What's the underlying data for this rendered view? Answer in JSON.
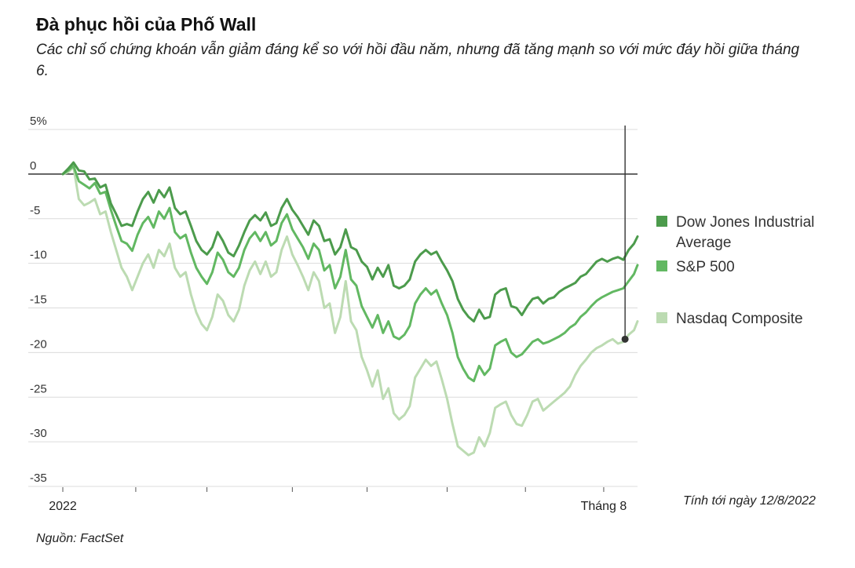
{
  "title": "Đà phục hồi của Phố Wall",
  "subtitle": "Các chỉ số chứng khoán vẫn giảm đáng kể so với hồi đầu năm, nhưng đã tăng mạnh so với mức đáy hồi giữa tháng 6.",
  "note": "Tính tới ngày 12/8/2022",
  "source": "Nguồn: FactSet",
  "chart_data": {
    "type": "line",
    "ylabel": "%",
    "ylim": [
      -35,
      5
    ],
    "yticks": [
      5,
      0,
      -5,
      -10,
      -15,
      -20,
      -25,
      -30,
      -35
    ],
    "ytick_labels": [
      "5%",
      "0",
      "-5",
      "-10",
      "-15",
      "-20",
      "-25",
      "-30",
      "-35"
    ],
    "xlim": [
      0,
      32.3
    ],
    "x_unit": "weeks since 2022-01-01",
    "xticks": [
      0,
      4.1,
      8.1,
      12.9,
      17.1,
      21.6,
      26.0,
      30.4
    ],
    "xtick_labels": [
      "2022",
      "",
      "",
      "",
      "",
      "",
      "",
      "Tháng 8"
    ],
    "annotation_x": 31.6,
    "legend_position": "right",
    "series": [
      {
        "name": "Dow Jones Industrial Average",
        "legend_lines": [
          "Dow Jones Industrial",
          "Average"
        ],
        "color": "#4c9b4c",
        "x": [
          0,
          0.3,
          0.6,
          0.9,
          1.2,
          1.5,
          1.8,
          2.1,
          2.4,
          2.7,
          3.0,
          3.3,
          3.6,
          3.9,
          4.2,
          4.5,
          4.8,
          5.1,
          5.4,
          5.7,
          6.0,
          6.3,
          6.6,
          6.9,
          7.2,
          7.5,
          7.8,
          8.1,
          8.4,
          8.7,
          9.0,
          9.3,
          9.6,
          9.9,
          10.2,
          10.5,
          10.8,
          11.1,
          11.4,
          11.7,
          12.0,
          12.3,
          12.6,
          12.9,
          13.2,
          13.5,
          13.8,
          14.1,
          14.4,
          14.7,
          15.0,
          15.3,
          15.6,
          15.9,
          16.2,
          16.5,
          16.8,
          17.1,
          17.4,
          17.7,
          18.0,
          18.3,
          18.6,
          18.9,
          19.2,
          19.5,
          19.8,
          20.1,
          20.4,
          20.7,
          21.0,
          21.3,
          21.6,
          21.9,
          22.2,
          22.5,
          22.8,
          23.1,
          23.4,
          23.7,
          24.0,
          24.3,
          24.6,
          24.9,
          25.2,
          25.5,
          25.8,
          26.1,
          26.4,
          26.7,
          27.0,
          27.3,
          27.6,
          27.9,
          28.2,
          28.5,
          28.8,
          29.1,
          29.4,
          29.7,
          30.0,
          30.3,
          30.6,
          30.9,
          31.2,
          31.5,
          31.8,
          32.1,
          32.3
        ],
        "values": [
          0,
          0.6,
          1.3,
          0.4,
          0.3,
          -0.6,
          -0.5,
          -1.5,
          -1.2,
          -3.3,
          -4.5,
          -5.8,
          -5.6,
          -5.8,
          -4.2,
          -2.8,
          -2.0,
          -3.2,
          -1.8,
          -2.6,
          -1.5,
          -3.8,
          -4.5,
          -4.2,
          -5.8,
          -7.5,
          -8.5,
          -9.0,
          -8.2,
          -6.5,
          -7.5,
          -8.8,
          -9.2,
          -8.0,
          -6.5,
          -5.2,
          -4.6,
          -5.2,
          -4.3,
          -5.8,
          -5.5,
          -3.8,
          -2.8,
          -4.0,
          -4.8,
          -5.8,
          -6.8,
          -5.2,
          -5.8,
          -7.5,
          -7.3,
          -9.0,
          -8.2,
          -6.2,
          -8.2,
          -8.5,
          -9.8,
          -10.4,
          -11.8,
          -10.5,
          -11.5,
          -10.2,
          -12.5,
          -12.8,
          -12.5,
          -11.8,
          -9.8,
          -9.0,
          -8.5,
          -9.0,
          -8.7,
          -9.8,
          -10.8,
          -12.0,
          -14.0,
          -15.2,
          -16.0,
          -16.5,
          -15.2,
          -16.2,
          -16.0,
          -13.5,
          -13.0,
          -12.8,
          -14.8,
          -15.0,
          -15.8,
          -14.8,
          -14.0,
          -13.8,
          -14.5,
          -14.0,
          -13.8,
          -13.2,
          -12.8,
          -12.5,
          -12.2,
          -11.5,
          -11.2,
          -10.5,
          -9.8,
          -9.5,
          -9.8,
          -9.5,
          -9.3,
          -9.6,
          -8.5,
          -7.8,
          -7.0
        ]
      },
      {
        "name": "S&P 500",
        "legend_lines": [
          "S&P 500"
        ],
        "color": "#62b862",
        "x": [
          0,
          0.3,
          0.6,
          0.9,
          1.2,
          1.5,
          1.8,
          2.1,
          2.4,
          2.7,
          3.0,
          3.3,
          3.6,
          3.9,
          4.2,
          4.5,
          4.8,
          5.1,
          5.4,
          5.7,
          6.0,
          6.3,
          6.6,
          6.9,
          7.2,
          7.5,
          7.8,
          8.1,
          8.4,
          8.7,
          9.0,
          9.3,
          9.6,
          9.9,
          10.2,
          10.5,
          10.8,
          11.1,
          11.4,
          11.7,
          12.0,
          12.3,
          12.6,
          12.9,
          13.2,
          13.5,
          13.8,
          14.1,
          14.4,
          14.7,
          15.0,
          15.3,
          15.6,
          15.9,
          16.2,
          16.5,
          16.8,
          17.1,
          17.4,
          17.7,
          18.0,
          18.3,
          18.6,
          18.9,
          19.2,
          19.5,
          19.8,
          20.1,
          20.4,
          20.7,
          21.0,
          21.3,
          21.6,
          21.9,
          22.2,
          22.5,
          22.8,
          23.1,
          23.4,
          23.7,
          24.0,
          24.3,
          24.6,
          24.9,
          25.2,
          25.5,
          25.8,
          26.1,
          26.4,
          26.7,
          27.0,
          27.3,
          27.6,
          27.9,
          28.2,
          28.5,
          28.8,
          29.1,
          29.4,
          29.7,
          30.0,
          30.3,
          30.6,
          30.9,
          31.2,
          31.5,
          31.8,
          32.1,
          32.3
        ],
        "values": [
          0,
          0.4,
          0.9,
          -0.8,
          -1.2,
          -1.6,
          -1.0,
          -2.2,
          -2.0,
          -4.0,
          -5.8,
          -7.5,
          -7.8,
          -8.6,
          -6.8,
          -5.5,
          -4.8,
          -6.0,
          -4.2,
          -5.0,
          -3.8,
          -6.5,
          -7.2,
          -6.8,
          -8.8,
          -10.5,
          -11.5,
          -12.3,
          -11.0,
          -8.8,
          -9.6,
          -11.0,
          -11.5,
          -10.5,
          -8.5,
          -7.2,
          -6.5,
          -7.5,
          -6.5,
          -8.0,
          -7.5,
          -5.5,
          -4.5,
          -6.2,
          -7.2,
          -8.2,
          -9.5,
          -7.8,
          -8.5,
          -10.8,
          -10.2,
          -12.8,
          -11.5,
          -8.5,
          -11.8,
          -12.5,
          -14.8,
          -16.0,
          -17.2,
          -15.8,
          -17.8,
          -16.5,
          -18.2,
          -18.5,
          -18.0,
          -17.0,
          -14.5,
          -13.5,
          -12.8,
          -13.5,
          -13.0,
          -14.5,
          -15.8,
          -17.8,
          -20.5,
          -21.8,
          -22.8,
          -23.2,
          -21.5,
          -22.5,
          -21.8,
          -19.2,
          -18.8,
          -18.5,
          -20.0,
          -20.5,
          -20.2,
          -19.5,
          -18.8,
          -18.5,
          -19.0,
          -18.8,
          -18.5,
          -18.2,
          -17.8,
          -17.2,
          -16.8,
          -16.0,
          -15.5,
          -14.8,
          -14.2,
          -13.8,
          -13.5,
          -13.2,
          -13.0,
          -12.8,
          -12.0,
          -11.2,
          -10.2
        ]
      },
      {
        "name": "Nasdaq Composite",
        "legend_lines": [
          "Nasdaq Composite"
        ],
        "color": "#bcdbb2",
        "x": [
          0,
          0.3,
          0.6,
          0.9,
          1.2,
          1.5,
          1.8,
          2.1,
          2.4,
          2.7,
          3.0,
          3.3,
          3.6,
          3.9,
          4.2,
          4.5,
          4.8,
          5.1,
          5.4,
          5.7,
          6.0,
          6.3,
          6.6,
          6.9,
          7.2,
          7.5,
          7.8,
          8.1,
          8.4,
          8.7,
          9.0,
          9.3,
          9.6,
          9.9,
          10.2,
          10.5,
          10.8,
          11.1,
          11.4,
          11.7,
          12.0,
          12.3,
          12.6,
          12.9,
          13.2,
          13.5,
          13.8,
          14.1,
          14.4,
          14.7,
          15.0,
          15.3,
          15.6,
          15.9,
          16.2,
          16.5,
          16.8,
          17.1,
          17.4,
          17.7,
          18.0,
          18.3,
          18.6,
          18.9,
          19.2,
          19.5,
          19.8,
          20.1,
          20.4,
          20.7,
          21.0,
          21.3,
          21.6,
          21.9,
          22.2,
          22.5,
          22.8,
          23.1,
          23.4,
          23.7,
          24.0,
          24.3,
          24.6,
          24.9,
          25.2,
          25.5,
          25.8,
          26.1,
          26.4,
          26.7,
          27.0,
          27.3,
          27.6,
          27.9,
          28.2,
          28.5,
          28.8,
          29.1,
          29.4,
          29.7,
          30.0,
          30.3,
          30.6,
          30.9,
          31.2,
          31.5,
          31.8,
          32.1,
          32.3
        ],
        "values": [
          0,
          0.2,
          0.8,
          -2.8,
          -3.5,
          -3.2,
          -2.8,
          -4.5,
          -4.2,
          -6.5,
          -8.5,
          -10.5,
          -11.5,
          -13.0,
          -11.5,
          -10.0,
          -9.0,
          -10.5,
          -8.5,
          -9.2,
          -7.8,
          -10.5,
          -11.5,
          -11.0,
          -13.5,
          -15.5,
          -16.8,
          -17.5,
          -16.0,
          -13.5,
          -14.2,
          -15.8,
          -16.5,
          -15.2,
          -12.5,
          -10.8,
          -9.8,
          -11.2,
          -9.8,
          -11.5,
          -11.0,
          -8.5,
          -7.0,
          -9.0,
          -10.2,
          -11.5,
          -13.0,
          -11.0,
          -12.0,
          -15.0,
          -14.5,
          -17.8,
          -16.0,
          -12.0,
          -16.5,
          -17.5,
          -20.5,
          -22.0,
          -23.8,
          -22.0,
          -25.2,
          -24.0,
          -26.8,
          -27.5,
          -27.0,
          -26.0,
          -22.8,
          -21.8,
          -20.8,
          -21.5,
          -21.0,
          -23.0,
          -25.2,
          -28.0,
          -30.5,
          -31.0,
          -31.5,
          -31.2,
          -29.5,
          -30.5,
          -29.0,
          -26.2,
          -25.8,
          -25.5,
          -27.0,
          -28.0,
          -28.2,
          -27.0,
          -25.5,
          -25.2,
          -26.5,
          -26.0,
          -25.5,
          -25.0,
          -24.5,
          -23.8,
          -22.5,
          -21.5,
          -20.8,
          -20.0,
          -19.5,
          -19.2,
          -18.8,
          -18.5,
          -19.0,
          -18.8,
          -18.0,
          -17.5,
          -16.5
        ]
      }
    ]
  }
}
